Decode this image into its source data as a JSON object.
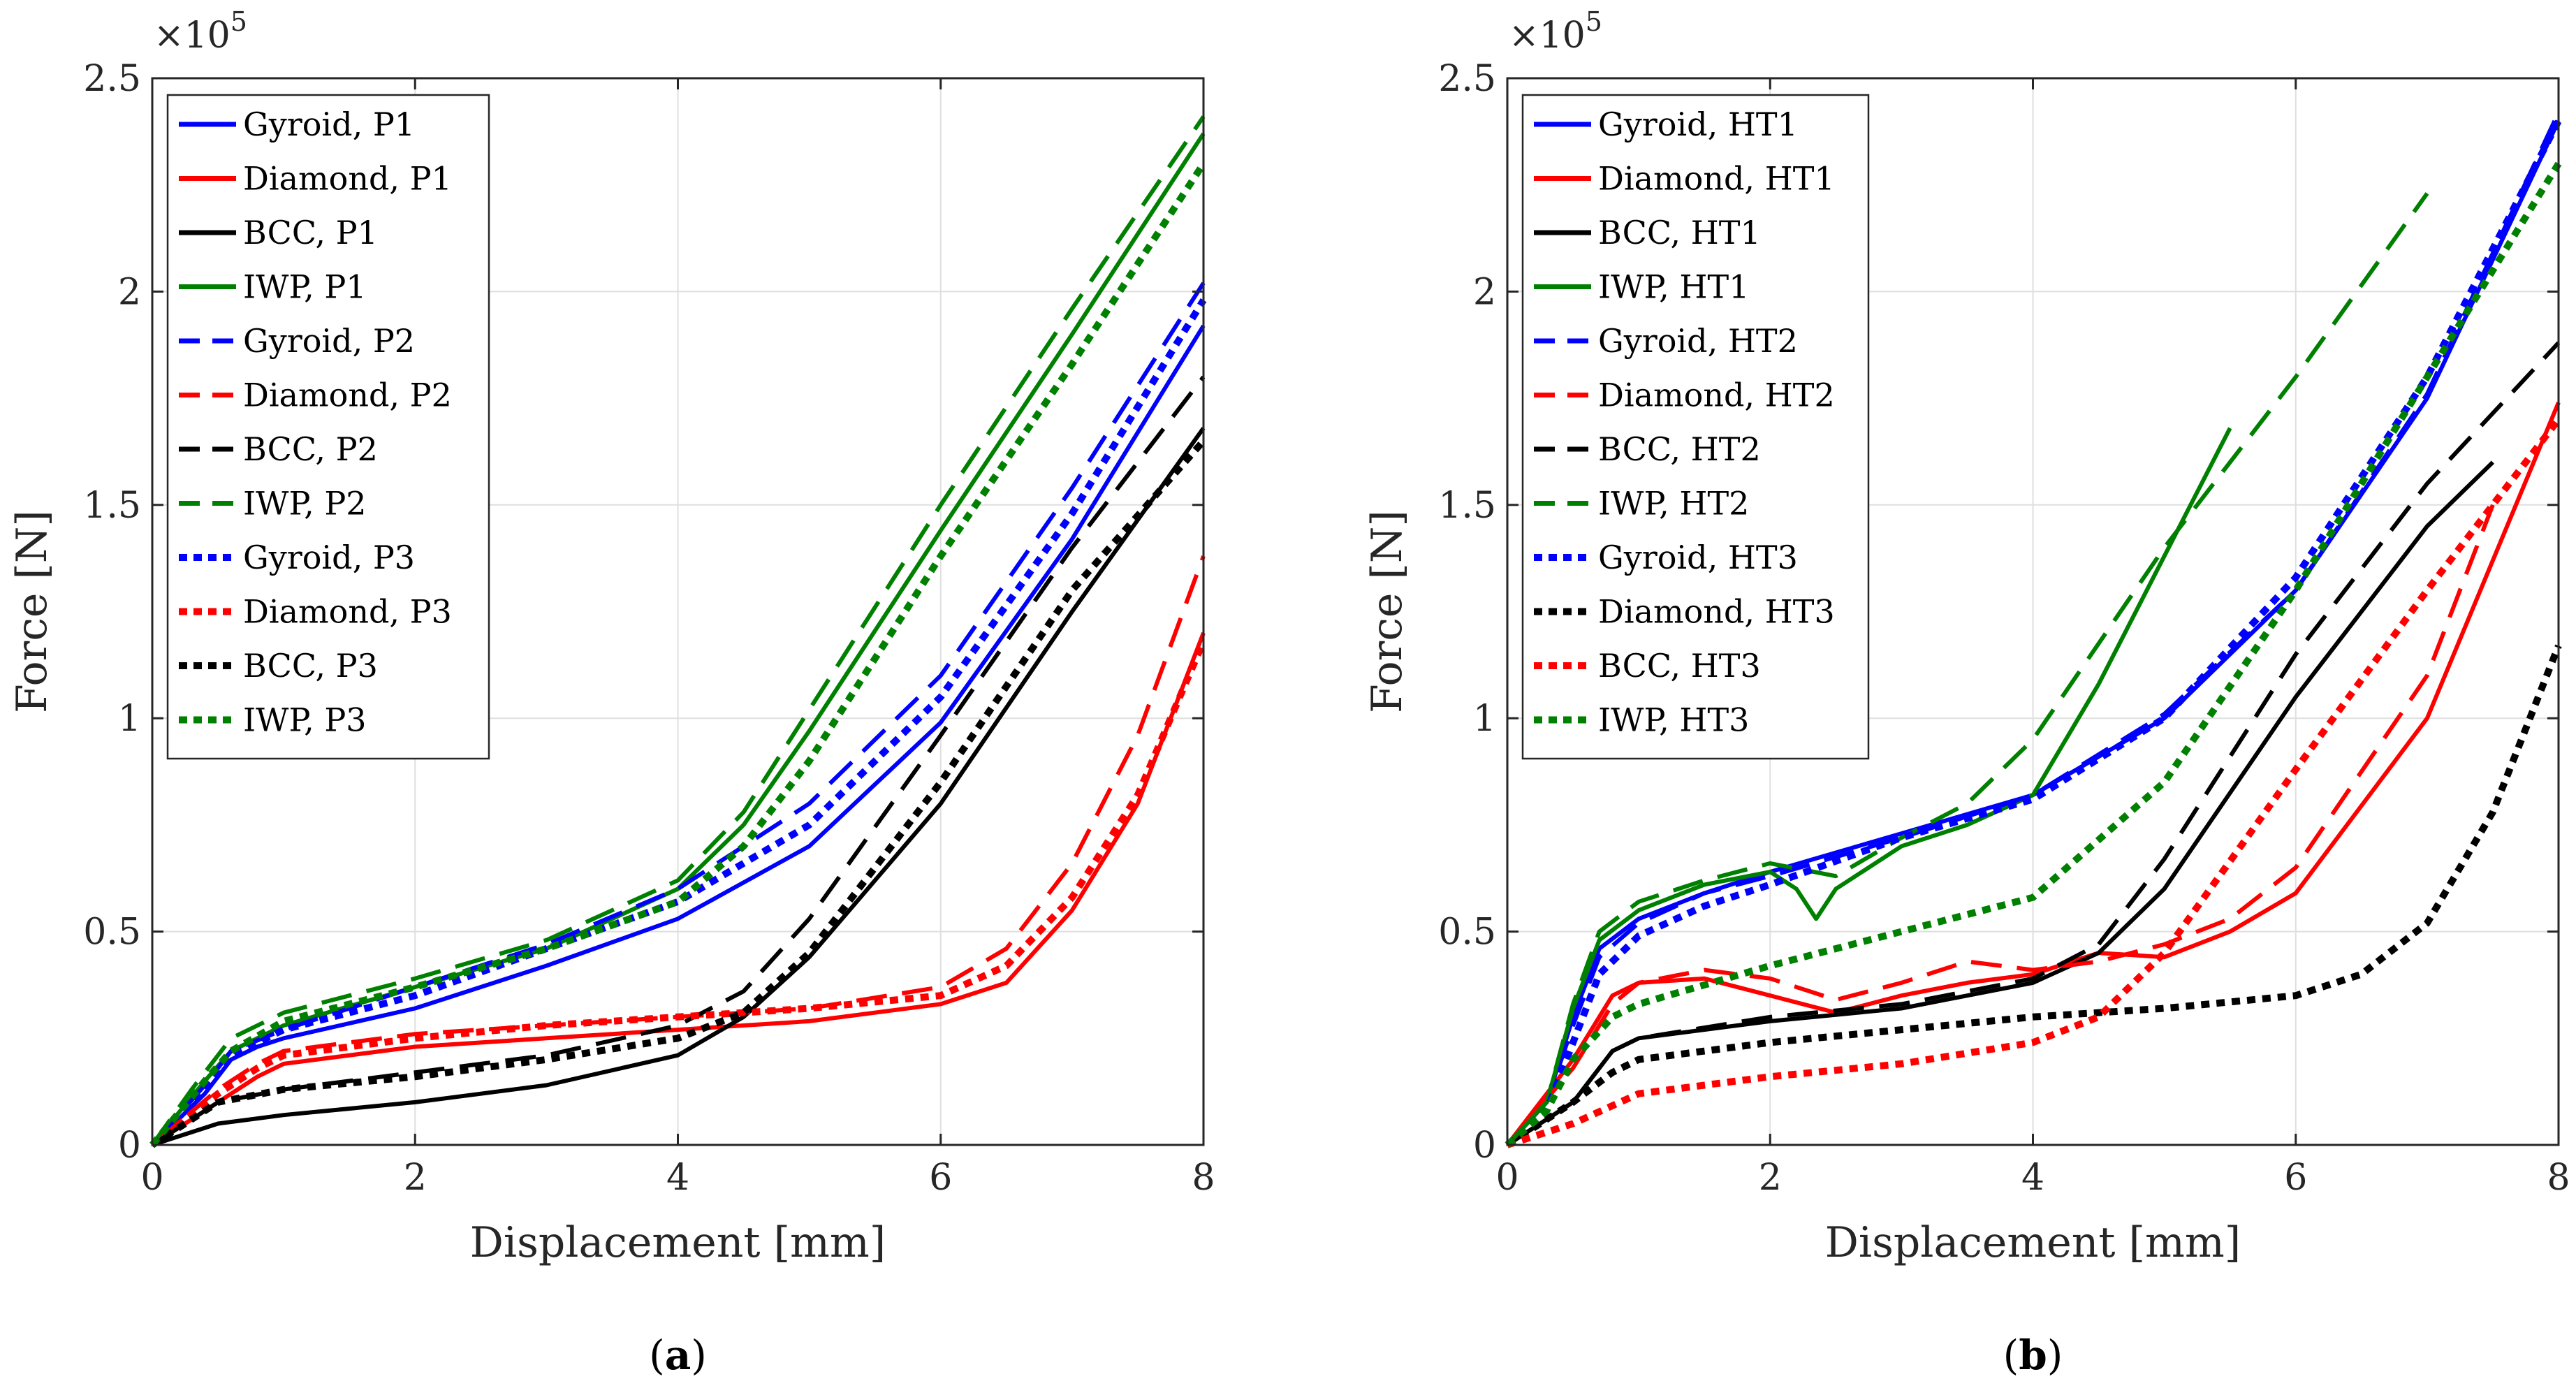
{
  "chart_data": [
    {
      "id": "a",
      "type": "line",
      "subcaption": "a",
      "xlabel": "Displacement [mm]",
      "ylabel": "Force [N]",
      "y_exponent_base": "×10",
      "y_exponent_power": "5",
      "xlim": [
        0,
        8
      ],
      "ylim": [
        0,
        2.5
      ],
      "xticks": [
        0,
        2,
        4,
        6,
        8
      ],
      "yticks": [
        0,
        0.5,
        1,
        1.5,
        2,
        2.5
      ],
      "xtick_labels": [
        "0",
        "2",
        "4",
        "6",
        "8"
      ],
      "ytick_labels": [
        "0",
        "0.5",
        "1",
        "1.5",
        "2",
        "2.5"
      ],
      "grid": true,
      "legend_position": "top-left",
      "series": [
        {
          "name": "Gyroid, P1",
          "color": "#0000ff",
          "style": "solid",
          "x": [
            0,
            0.4,
            0.6,
            0.8,
            1,
            2,
            3,
            4,
            5,
            6,
            7,
            8
          ],
          "y": [
            0,
            0.12,
            0.2,
            0.23,
            0.25,
            0.32,
            0.42,
            0.53,
            0.7,
            0.99,
            1.42,
            1.92
          ]
        },
        {
          "name": "Diamond, P1",
          "color": "#ff0000",
          "style": "solid",
          "x": [
            0,
            0.5,
            0.8,
            1,
            2,
            3,
            4,
            5,
            6,
            6.5,
            7,
            7.5,
            8
          ],
          "y": [
            0,
            0.1,
            0.16,
            0.19,
            0.23,
            0.25,
            0.27,
            0.29,
            0.33,
            0.38,
            0.55,
            0.8,
            1.2
          ]
        },
        {
          "name": "BCC, P1",
          "color": "#000000",
          "style": "solid",
          "x": [
            0,
            0.5,
            1,
            2,
            3,
            4,
            4.5,
            5,
            6,
            7,
            8
          ],
          "y": [
            0,
            0.05,
            0.07,
            0.1,
            0.14,
            0.21,
            0.3,
            0.44,
            0.8,
            1.25,
            1.68
          ]
        },
        {
          "name": "IWP, P1",
          "color": "#008000",
          "style": "solid",
          "x": [
            0,
            0.4,
            0.6,
            1,
            2,
            3,
            4,
            4.5,
            5,
            6,
            7,
            8
          ],
          "y": [
            0,
            0.15,
            0.22,
            0.28,
            0.37,
            0.46,
            0.6,
            0.75,
            0.97,
            1.44,
            1.9,
            2.37
          ]
        },
        {
          "name": "Gyroid, P2",
          "color": "#0000ff",
          "style": "dashed",
          "x": [
            0,
            0.4,
            0.6,
            1,
            2,
            3,
            4,
            5,
            6,
            7,
            8
          ],
          "y": [
            0,
            0.14,
            0.22,
            0.27,
            0.37,
            0.47,
            0.6,
            0.8,
            1.1,
            1.54,
            2.02
          ]
        },
        {
          "name": "Diamond, P2",
          "color": "#ff0000",
          "style": "dashed",
          "x": [
            0,
            0.5,
            0.8,
            1,
            2,
            3,
            4,
            5,
            6,
            6.5,
            7,
            7.5,
            8
          ],
          "y": [
            0,
            0.13,
            0.19,
            0.22,
            0.26,
            0.28,
            0.3,
            0.32,
            0.37,
            0.46,
            0.66,
            0.96,
            1.38
          ]
        },
        {
          "name": "BCC, P2",
          "color": "#000000",
          "style": "dashed",
          "x": [
            0,
            0.5,
            1,
            2,
            3,
            4,
            4.5,
            5,
            6,
            7,
            8
          ],
          "y": [
            0,
            0.1,
            0.13,
            0.17,
            0.21,
            0.28,
            0.36,
            0.53,
            0.96,
            1.4,
            1.8
          ]
        },
        {
          "name": "IWP, P2",
          "color": "#008000",
          "style": "dashed",
          "x": [
            0,
            0.3,
            0.6,
            1,
            2,
            3,
            4,
            4.5,
            5,
            6,
            7,
            8
          ],
          "y": [
            0,
            0.13,
            0.25,
            0.31,
            0.39,
            0.48,
            0.62,
            0.78,
            1.02,
            1.5,
            1.96,
            2.41
          ]
        },
        {
          "name": "Gyroid, P3",
          "color": "#0000ff",
          "style": "dotted",
          "x": [
            0,
            0.4,
            0.6,
            1,
            2,
            3,
            4,
            5,
            6,
            7,
            8
          ],
          "y": [
            0,
            0.13,
            0.21,
            0.27,
            0.35,
            0.46,
            0.57,
            0.75,
            1.05,
            1.48,
            1.98
          ]
        },
        {
          "name": "Diamond, P3",
          "color": "#ff0000",
          "style": "dotted",
          "x": [
            0,
            0.5,
            0.8,
            1,
            2,
            3,
            4,
            5,
            6,
            6.5,
            7,
            7.5,
            8
          ],
          "y": [
            0,
            0.12,
            0.18,
            0.21,
            0.25,
            0.28,
            0.3,
            0.32,
            0.35,
            0.42,
            0.58,
            0.82,
            1.18
          ]
        },
        {
          "name": "BCC, P3",
          "color": "#000000",
          "style": "dotted",
          "x": [
            0,
            0.5,
            1,
            2,
            3,
            4,
            4.5,
            5,
            6,
            7,
            8
          ],
          "y": [
            0,
            0.1,
            0.13,
            0.16,
            0.2,
            0.25,
            0.31,
            0.45,
            0.85,
            1.3,
            1.65
          ]
        },
        {
          "name": "IWP, P3",
          "color": "#008000",
          "style": "dotted",
          "x": [
            0,
            0.4,
            0.6,
            1,
            2,
            3,
            4,
            4.5,
            5,
            6,
            7,
            8
          ],
          "y": [
            0,
            0.15,
            0.22,
            0.29,
            0.37,
            0.46,
            0.57,
            0.7,
            0.9,
            1.38,
            1.83,
            2.3
          ]
        }
      ]
    },
    {
      "id": "b",
      "type": "line",
      "subcaption": "b",
      "xlabel": "Displacement [mm]",
      "ylabel": "Force [N]",
      "y_exponent_base": "×10",
      "y_exponent_power": "5",
      "xlim": [
        0,
        8
      ],
      "ylim": [
        0,
        2.5
      ],
      "xticks": [
        0,
        2,
        4,
        6,
        8
      ],
      "yticks": [
        0,
        0.5,
        1,
        1.5,
        2,
        2.5
      ],
      "xtick_labels": [
        "0",
        "2",
        "4",
        "6",
        "8"
      ],
      "ytick_labels": [
        "0",
        "0.5",
        "1",
        "1.5",
        "2",
        "2.5"
      ],
      "grid": true,
      "legend_position": "top-left",
      "series": [
        {
          "name": "Gyroid, HT1",
          "color": "#0000ff",
          "style": "solid",
          "x": [
            0,
            0.3,
            0.5,
            0.7,
            1,
            1.5,
            2,
            3,
            4,
            5,
            6,
            7,
            8
          ],
          "y": [
            0,
            0.1,
            0.3,
            0.46,
            0.53,
            0.59,
            0.64,
            0.73,
            0.82,
            1.0,
            1.3,
            1.75,
            2.4
          ]
        },
        {
          "name": "Diamond, HT1",
          "color": "#ff0000",
          "style": "solid",
          "x": [
            0,
            0.5,
            0.8,
            1,
            1.5,
            2,
            2.5,
            3,
            3.5,
            4,
            4.5,
            5,
            5.5,
            6,
            7,
            8
          ],
          "y": [
            0,
            0.2,
            0.35,
            0.38,
            0.39,
            0.35,
            0.31,
            0.35,
            0.38,
            0.4,
            0.45,
            0.44,
            0.5,
            0.59,
            1.0,
            1.74
          ]
        },
        {
          "name": "BCC, HT1",
          "color": "#000000",
          "style": "solid",
          "x": [
            0,
            0.5,
            0.8,
            1,
            2,
            3,
            4,
            4.5,
            5,
            6,
            7,
            7.5
          ],
          "y": [
            0,
            0.1,
            0.22,
            0.25,
            0.29,
            0.32,
            0.38,
            0.45,
            0.6,
            1.05,
            1.45,
            1.6
          ]
        },
        {
          "name": "IWP, HT1",
          "color": "#008000",
          "style": "solid",
          "x": [
            0,
            0.3,
            0.5,
            0.7,
            1,
            1.5,
            2,
            2.2,
            2.35,
            2.5,
            3,
            3.5,
            4,
            4.5,
            5,
            5.5
          ],
          "y": [
            0,
            0.1,
            0.32,
            0.48,
            0.55,
            0.61,
            0.64,
            0.6,
            0.53,
            0.6,
            0.7,
            0.75,
            0.82,
            1.08,
            1.38,
            1.68
          ]
        },
        {
          "name": "Gyroid, HT2",
          "color": "#0000ff",
          "style": "dashed",
          "x": [
            0,
            0.3,
            0.5,
            0.7,
            1,
            1.5,
            2,
            3,
            4,
            5,
            6,
            7,
            8
          ],
          "y": [
            0,
            0.1,
            0.28,
            0.44,
            0.52,
            0.59,
            0.63,
            0.72,
            0.82,
            1.01,
            1.3,
            1.76,
            2.42
          ]
        },
        {
          "name": "Diamond, HT2",
          "color": "#ff0000",
          "style": "dashed",
          "x": [
            0,
            0.5,
            0.8,
            1,
            1.5,
            2,
            2.5,
            3,
            3.5,
            4,
            4.5,
            5,
            5.5,
            6,
            7,
            7.5
          ],
          "y": [
            0,
            0.18,
            0.33,
            0.38,
            0.41,
            0.39,
            0.34,
            0.38,
            0.43,
            0.41,
            0.43,
            0.47,
            0.53,
            0.65,
            1.1,
            1.5
          ]
        },
        {
          "name": "BCC, HT2",
          "color": "#000000",
          "style": "dashed",
          "x": [
            0,
            0.5,
            0.8,
            1,
            2,
            3,
            4,
            4.5,
            5,
            6,
            7,
            8
          ],
          "y": [
            0,
            0.1,
            0.22,
            0.25,
            0.3,
            0.33,
            0.39,
            0.47,
            0.67,
            1.15,
            1.55,
            1.88
          ]
        },
        {
          "name": "IWP, HT2",
          "color": "#008000",
          "style": "dashed",
          "x": [
            0,
            0.3,
            0.5,
            0.7,
            1,
            1.5,
            2,
            2.5,
            3,
            3.5,
            4,
            5,
            6,
            7
          ],
          "y": [
            0,
            0.1,
            0.33,
            0.5,
            0.57,
            0.62,
            0.66,
            0.63,
            0.72,
            0.8,
            0.95,
            1.4,
            1.8,
            2.23
          ]
        },
        {
          "name": "Gyroid, HT3",
          "color": "#0000ff",
          "style": "dotted",
          "x": [
            0,
            0.3,
            0.5,
            0.7,
            1,
            1.5,
            2,
            3,
            4,
            5,
            6,
            7,
            8
          ],
          "y": [
            0,
            0.08,
            0.24,
            0.4,
            0.49,
            0.56,
            0.61,
            0.72,
            0.81,
            1.0,
            1.33,
            1.8,
            2.4
          ]
        },
        {
          "name": "Diamond, HT3",
          "color": "#000000",
          "style": "dotted",
          "x": [
            0,
            0.5,
            0.8,
            1,
            2,
            3,
            4,
            5,
            6,
            6.5,
            7,
            7.5,
            8
          ],
          "y": [
            0,
            0.1,
            0.17,
            0.2,
            0.24,
            0.27,
            0.3,
            0.32,
            0.35,
            0.4,
            0.52,
            0.78,
            1.17
          ]
        },
        {
          "name": "BCC, HT3",
          "color": "#ff0000",
          "style": "dotted",
          "x": [
            0,
            0.5,
            1,
            2,
            3,
            4,
            4.5,
            5,
            6,
            7,
            7.5,
            8
          ],
          "y": [
            0,
            0.05,
            0.12,
            0.16,
            0.19,
            0.24,
            0.3,
            0.45,
            0.88,
            1.3,
            1.5,
            1.7
          ]
        },
        {
          "name": "IWP, HT3",
          "color": "#008000",
          "style": "dotted",
          "x": [
            0,
            0.3,
            0.5,
            0.8,
            1,
            2,
            3,
            4,
            5,
            6,
            7,
            8
          ],
          "y": [
            0,
            0.08,
            0.2,
            0.3,
            0.33,
            0.42,
            0.5,
            0.58,
            0.85,
            1.3,
            1.8,
            2.3
          ]
        }
      ]
    }
  ]
}
